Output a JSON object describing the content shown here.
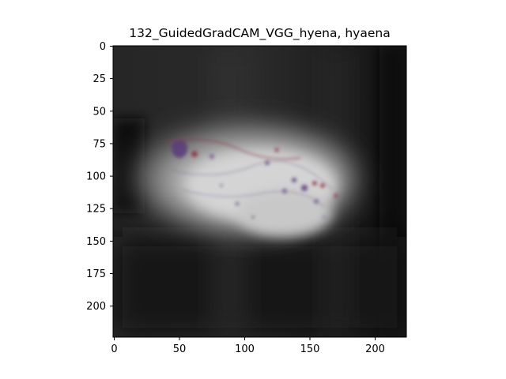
{
  "figure": {
    "title": "132_GuidedGradCAM_VGG_hyena, hyaena",
    "x_ticks": [
      "0",
      "50",
      "100",
      "150",
      "200"
    ],
    "y_ticks": [
      "0",
      "25",
      "50",
      "75",
      "100",
      "125",
      "150",
      "175",
      "200"
    ]
  },
  "image": {
    "description_icon": "guided-gradcam-heatmap-image",
    "colors": {
      "background": "#1e1e1e",
      "highlight": "#d8d8d8",
      "speckle": "#5a3a7a",
      "red_speckle": "#8a3040"
    }
  }
}
